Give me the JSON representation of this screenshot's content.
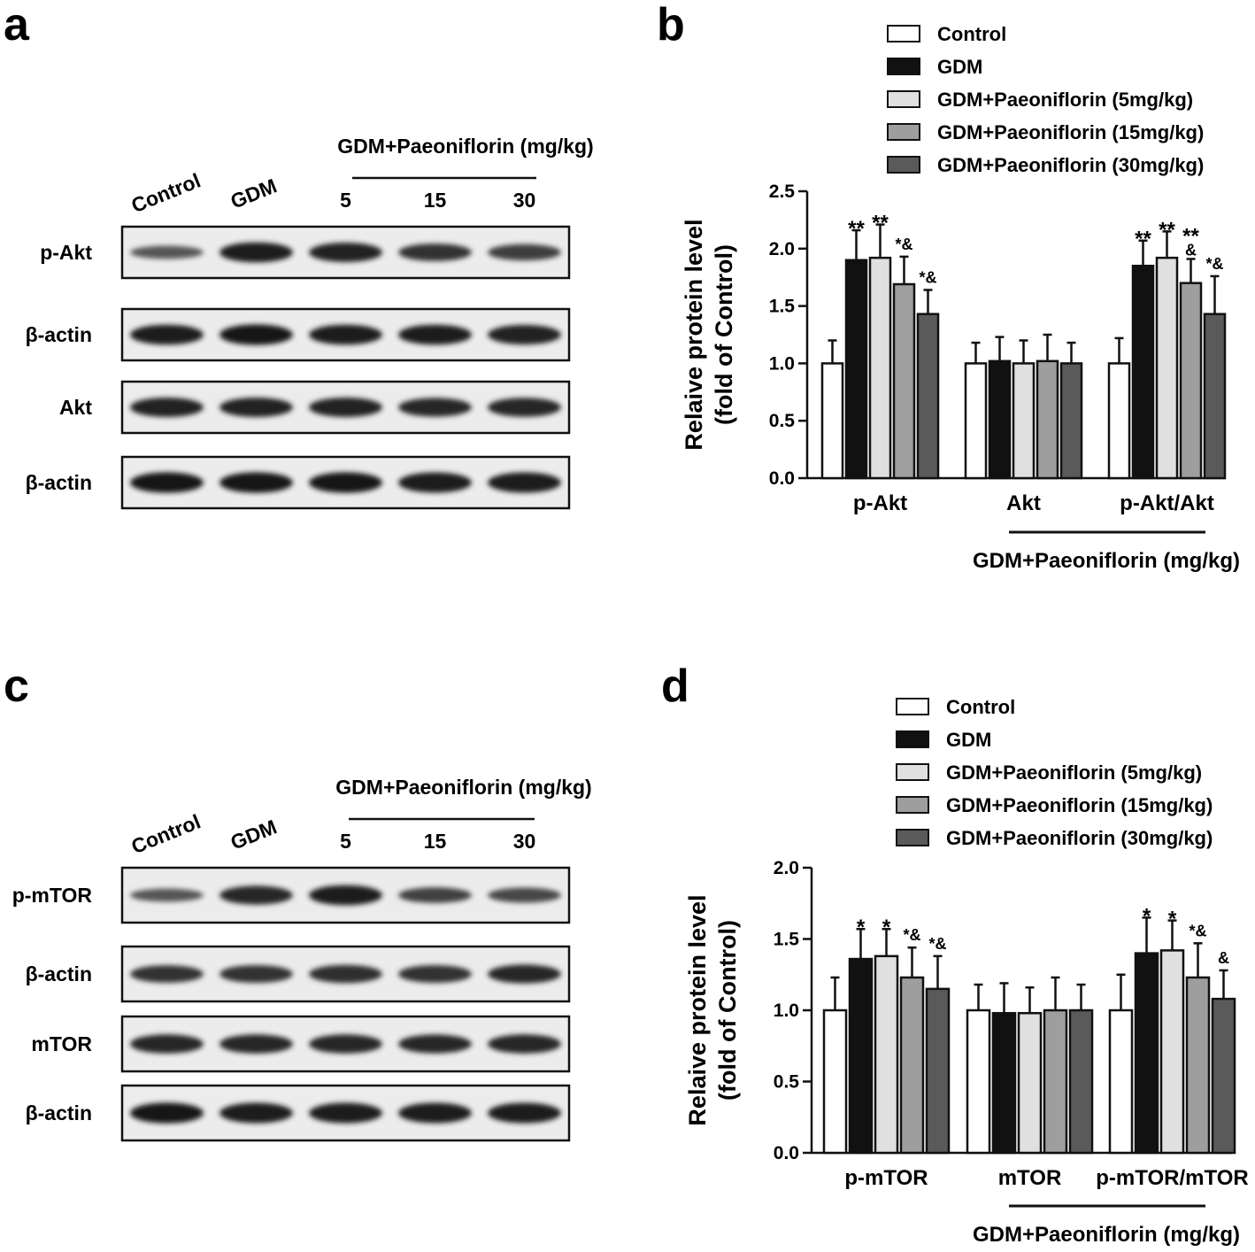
{
  "panels": {
    "a": "a",
    "b": "b",
    "c": "c",
    "d": "d"
  },
  "blots": [
    {
      "id": "akt",
      "lanes": [
        "Control",
        "GDM",
        "5",
        "15",
        "30"
      ],
      "group_label": "GDM+Paeoniflorin (mg/kg)",
      "rows": [
        {
          "label": "p-Akt",
          "intensities": [
            0.35,
            0.9,
            0.85,
            0.7,
            0.6
          ]
        },
        {
          "label": "β-actin",
          "intensities": [
            0.9,
            0.95,
            0.9,
            0.9,
            0.88
          ]
        },
        {
          "label": "Akt",
          "intensities": [
            0.85,
            0.85,
            0.85,
            0.8,
            0.82
          ]
        },
        {
          "label": "β-actin",
          "intensities": [
            0.95,
            0.95,
            0.95,
            0.92,
            0.92
          ]
        }
      ]
    },
    {
      "id": "mtor",
      "lanes": [
        "Control",
        "GDM",
        "5",
        "15",
        "30"
      ],
      "group_label": "GDM+Paeoniflorin (mg/kg)",
      "rows": [
        {
          "label": "p-mTOR",
          "intensities": [
            0.35,
            0.8,
            0.9,
            0.55,
            0.5
          ]
        },
        {
          "label": "β-actin",
          "intensities": [
            0.7,
            0.72,
            0.75,
            0.72,
            0.8
          ]
        },
        {
          "label": "mTOR",
          "intensities": [
            0.82,
            0.82,
            0.82,
            0.8,
            0.82
          ]
        },
        {
          "label": "β-actin",
          "intensities": [
            0.95,
            0.92,
            0.92,
            0.92,
            0.92
          ]
        }
      ]
    }
  ],
  "chart_data": [
    {
      "type": "bar",
      "categories": [
        "p-Akt",
        "Akt",
        "p-Akt/Akt"
      ],
      "ylabel": [
        "Relaive protein level",
        "(fold of Control)"
      ],
      "ylim": [
        0,
        2.5
      ],
      "yticks": [
        "0.0",
        "0.5",
        "1.0",
        "1.5",
        "2.0",
        "2.5"
      ],
      "group_label": "GDM+Paeoniflorin (mg/kg)",
      "legend_position": "top-right",
      "series": [
        {
          "name": "Control",
          "color": "#ffffff",
          "values": [
            1.0,
            1.0,
            1.0
          ],
          "errors": [
            0.2,
            0.18,
            0.22
          ],
          "annotations": [
            "",
            "",
            ""
          ]
        },
        {
          "name": "GDM",
          "color": "#111111",
          "values": [
            1.9,
            1.02,
            1.85
          ],
          "errors": [
            0.26,
            0.21,
            0.22
          ],
          "annotations": [
            "**",
            "",
            "**"
          ]
        },
        {
          "name": "GDM+Paeoniflorin (5mg/kg)",
          "color": "#e0e0e0",
          "values": [
            1.92,
            1.0,
            1.92
          ],
          "errors": [
            0.29,
            0.2,
            0.23
          ],
          "annotations": [
            "**",
            "",
            "**"
          ]
        },
        {
          "name": "GDM+Paeoniflorin (15mg/kg)",
          "color": "#9e9e9e",
          "values": [
            1.69,
            1.02,
            1.7
          ],
          "errors": [
            0.24,
            0.23,
            0.21
          ],
          "annotations": [
            "*&",
            "",
            "**|&"
          ]
        },
        {
          "name": "GDM+Paeoniflorin (30mg/kg)",
          "color": "#5a5a5a",
          "values": [
            1.43,
            1.0,
            1.43
          ],
          "errors": [
            0.21,
            0.18,
            0.33
          ],
          "annotations": [
            "*&",
            "",
            "*&"
          ]
        }
      ]
    },
    {
      "type": "bar",
      "categories": [
        "p-mTOR",
        "mTOR",
        "p-mTOR/mTOR"
      ],
      "ylabel": [
        "Relaive protein level",
        "(fold of Control)"
      ],
      "ylim": [
        0,
        2.0
      ],
      "yticks": [
        "0.0",
        "0.5",
        "1.0",
        "1.5",
        "2.0"
      ],
      "group_label": "GDM+Paeoniflorin (mg/kg)",
      "legend_position": "top-right",
      "series": [
        {
          "name": "Control",
          "color": "#ffffff",
          "values": [
            1.0,
            1.0,
            1.0
          ],
          "errors": [
            0.23,
            0.18,
            0.25
          ],
          "annotations": [
            "",
            "",
            ""
          ]
        },
        {
          "name": "GDM",
          "color": "#111111",
          "values": [
            1.36,
            0.98,
            1.4
          ],
          "errors": [
            0.21,
            0.21,
            0.25
          ],
          "annotations": [
            "*",
            "",
            "*"
          ]
        },
        {
          "name": "GDM+Paeoniflorin (5mg/kg)",
          "color": "#e0e0e0",
          "values": [
            1.38,
            0.98,
            1.42
          ],
          "errors": [
            0.19,
            0.18,
            0.21
          ],
          "annotations": [
            "*",
            "",
            "*"
          ]
        },
        {
          "name": "GDM+Paeoniflorin (15mg/kg)",
          "color": "#9e9e9e",
          "values": [
            1.23,
            1.0,
            1.23
          ],
          "errors": [
            0.21,
            0.23,
            0.24
          ],
          "annotations": [
            "*&",
            "",
            "*&"
          ]
        },
        {
          "name": "GDM+Paeoniflorin (30mg/kg)",
          "color": "#5a5a5a",
          "values": [
            1.15,
            1.0,
            1.08
          ],
          "errors": [
            0.23,
            0.18,
            0.2
          ],
          "annotations": [
            "*&",
            "",
            "&"
          ]
        }
      ]
    }
  ]
}
